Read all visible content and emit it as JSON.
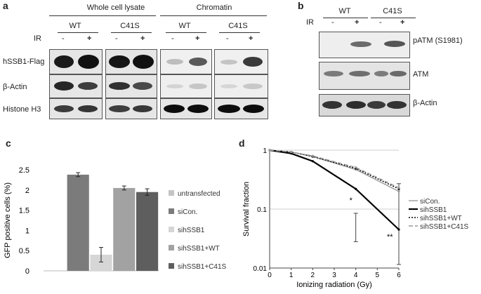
{
  "panel_a": {
    "label": "a",
    "groups": [
      "Whole cell lysate",
      "Chromatin"
    ],
    "genotypes": [
      "WT",
      "C41S",
      "WT",
      "C41S"
    ],
    "ir_label": "IR",
    "ir_signs": [
      "-",
      "+",
      "-",
      "+",
      "-",
      "+",
      "-",
      "+"
    ],
    "rows": [
      "hSSB1-Flag",
      "β-Actin",
      "Histone H3"
    ]
  },
  "panel_b": {
    "label": "b",
    "genotypes": [
      "WT",
      "C41S"
    ],
    "ir_label": "IR",
    "ir_signs": [
      "-",
      "+",
      "-",
      "+"
    ],
    "rows": [
      "pATM (S1981)",
      "ATM",
      "β-Actin"
    ]
  },
  "chart_data": [
    {
      "panel": "c",
      "type": "bar",
      "ylabel": "GFP positive cells (%)",
      "xlabel": "",
      "ylim": [
        0,
        2.5
      ],
      "yticks": [
        "0",
        "0.5",
        "1",
        "1.5",
        "2",
        "2.5"
      ],
      "categories": [
        "untransfected",
        "siCon.",
        "sihSSB1",
        "sihSSB1+WT",
        "sihSSB1+C41S"
      ],
      "values": [
        0,
        2.38,
        0.4,
        2.05,
        1.95
      ],
      "errors": [
        0,
        0.05,
        0.18,
        0.05,
        0.08
      ],
      "colors": [
        "#c4c4c4",
        "#7b7b7b",
        "#d6d6d6",
        "#a2a2a2",
        "#5e5e5e"
      ],
      "legend": "right"
    },
    {
      "panel": "d",
      "type": "line",
      "xlabel": "Ionizing radiation (Gy)",
      "ylabel": "Survival fraction",
      "xlim": [
        0,
        6
      ],
      "ylim": [
        0.01,
        1
      ],
      "yscale": "log",
      "xticks": [
        "0",
        "1",
        "2",
        "3",
        "4",
        "5",
        "6"
      ],
      "yticks": [
        "1",
        "0.1",
        "0.01"
      ],
      "x": [
        0,
        1,
        2,
        4,
        6
      ],
      "series": [
        {
          "name": "siCon.",
          "values": [
            1,
            0.93,
            0.78,
            0.47,
            0.2
          ],
          "color": "#999999",
          "dash": ""
        },
        {
          "name": "sihSSB1",
          "values": [
            1,
            0.88,
            0.65,
            0.22,
            0.045
          ],
          "color": "#000000",
          "dash": ""
        },
        {
          "name": "sihSSB1+WT",
          "values": [
            1,
            0.93,
            0.78,
            0.49,
            0.22
          ],
          "color": "#000000",
          "dash": "2,2"
        },
        {
          "name": "sihSSB1+C41S",
          "values": [
            1,
            0.93,
            0.8,
            0.51,
            0.23
          ],
          "color": "#999999",
          "dash": "6,3"
        }
      ],
      "annotations": [
        "*",
        "**"
      ],
      "legend": "right"
    }
  ]
}
